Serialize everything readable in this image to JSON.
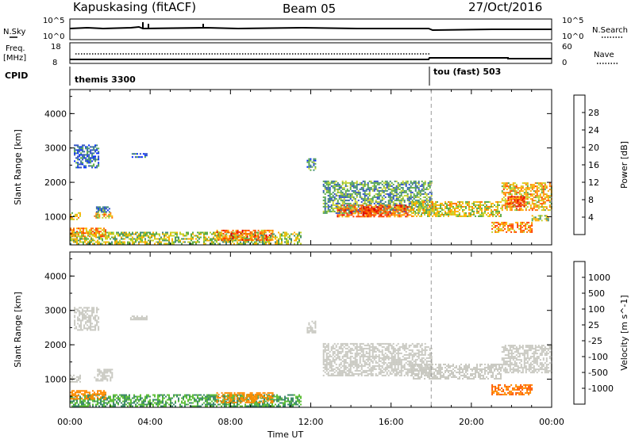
{
  "header": {
    "station": "Kapuskasing (fitACF)",
    "beam": "Beam 05",
    "date": "27/Oct/2016"
  },
  "param_panels": {
    "nsky_label": "N.Sky",
    "nsearch_label": "N.Search",
    "noise_ticks_left": [
      "10^5",
      "10^0"
    ],
    "noise_ticks_right": [
      "10^5",
      "10^0"
    ],
    "freq_label": "Freq.",
    "freq_unit": "[MHz]",
    "freq_ticks": [
      "18",
      "8"
    ],
    "nave_label": "Nave",
    "nave_ticks": [
      "60",
      "0"
    ],
    "cpid_label": "CPID",
    "cpid_segments": [
      {
        "name": "themis 3300",
        "start_hour": 0
      },
      {
        "name": "tou (fast) 503",
        "start_hour": 18
      }
    ]
  },
  "time_axis": {
    "label": "Time UT",
    "ticks": [
      "00:00",
      "04:00",
      "08:00",
      "12:00",
      "16:00",
      "20:00",
      "00:00"
    ]
  },
  "colors": {
    "power": [
      "#0026ff",
      "#2d4fc4",
      "#3f8a78",
      "#5aab45",
      "#c4d32a",
      "#ffb000",
      "#ff7400",
      "#ff3e00",
      "#e00000"
    ],
    "velocity": [
      "#1a3fbf",
      "#2f6fb0",
      "#3d8a6a",
      "#5fbf3a",
      "#c8c8c0",
      "#ffc000",
      "#ff8a00",
      "#ff5a00",
      "#ee0000"
    ],
    "ground_scatter": "#c8c8c0"
  },
  "chart_data": [
    {
      "type": "heatmap",
      "name": "power",
      "xlabel": "Time UT",
      "ylabel": "Slant Range [km]",
      "xlim": [
        0,
        24
      ],
      "ylim": [
        180,
        4700
      ],
      "yticks": [
        "4000",
        "3000",
        "2000",
        "1000"
      ],
      "colorbar": {
        "label": "Power [dB]",
        "ticks": [
          "28",
          "24",
          "20",
          "16",
          "12",
          "8",
          "4"
        ],
        "range": [
          0,
          30
        ]
      },
      "regions": [
        {
          "t0": 0.0,
          "t1": 11.5,
          "r0": 200,
          "r1": 560,
          "value": 14
        },
        {
          "t0": 0.0,
          "t1": 1.8,
          "r0": 430,
          "r1": 680,
          "value": 20
        },
        {
          "t0": 7.3,
          "t1": 10.1,
          "r0": 300,
          "r1": 620,
          "value": 22
        },
        {
          "t0": 0.0,
          "t1": 0.5,
          "r0": 900,
          "r1": 1130,
          "value": 16
        },
        {
          "t0": 1.2,
          "t1": 2.1,
          "r0": 950,
          "r1": 1130,
          "value": 18
        },
        {
          "t0": 1.3,
          "t1": 2.0,
          "r0": 1130,
          "r1": 1300,
          "value": 8
        },
        {
          "t0": 0.2,
          "t1": 1.4,
          "r0": 2450,
          "r1": 3100,
          "value": 6
        },
        {
          "t0": 3.0,
          "t1": 3.8,
          "r0": 2750,
          "r1": 2850,
          "value": 6
        },
        {
          "t0": 11.8,
          "t1": 12.2,
          "r0": 2350,
          "r1": 2700,
          "value": 8
        },
        {
          "t0": 12.6,
          "t1": 18.0,
          "r0": 1100,
          "r1": 2050,
          "value": 10
        },
        {
          "t0": 13.3,
          "t1": 17.0,
          "r0": 1000,
          "r1": 1350,
          "value": 22
        },
        {
          "t0": 14.6,
          "t1": 15.6,
          "r0": 1050,
          "r1": 1300,
          "value": 27
        },
        {
          "t0": 17.0,
          "t1": 21.5,
          "r0": 1000,
          "r1": 1450,
          "value": 16
        },
        {
          "t0": 21.5,
          "t1": 24.0,
          "r0": 1200,
          "r1": 2000,
          "value": 18
        },
        {
          "t0": 21.8,
          "t1": 22.6,
          "r0": 1300,
          "r1": 1600,
          "value": 24
        },
        {
          "t0": 21.0,
          "t1": 23.0,
          "r0": 550,
          "r1": 850,
          "value": 20
        },
        {
          "t0": 23.0,
          "t1": 23.8,
          "r0": 900,
          "r1": 1050,
          "value": 14
        }
      ]
    },
    {
      "type": "heatmap",
      "name": "velocity",
      "xlabel": "Time UT",
      "ylabel": "Slant Range [km]",
      "xlim": [
        0,
        24
      ],
      "ylim": [
        180,
        4700
      ],
      "yticks": [
        "4000",
        "3000",
        "2000",
        "1000"
      ],
      "colorbar": {
        "label": "Velocity [m s^-1]",
        "ticks": [
          "1000",
          "500",
          "100",
          "25",
          "-25",
          "-100",
          "-500",
          "-1000"
        ]
      },
      "regions": [
        {
          "t0": 0.0,
          "t1": 11.5,
          "r0": 200,
          "r1": 560,
          "value": 60
        },
        {
          "t0": 0.0,
          "t1": 1.8,
          "r0": 430,
          "r1": 680,
          "value": -150
        },
        {
          "t0": 7.3,
          "t1": 10.1,
          "r0": 300,
          "r1": 620,
          "value": -120
        },
        {
          "t0": 0.0,
          "t1": 0.5,
          "r0": 900,
          "r1": 1130,
          "value": 0
        },
        {
          "t0": 1.2,
          "t1": 2.1,
          "r0": 950,
          "r1": 1300,
          "value": 0
        },
        {
          "t0": 0.2,
          "t1": 1.4,
          "r0": 2450,
          "r1": 3100,
          "value": 0
        },
        {
          "t0": 3.0,
          "t1": 3.8,
          "r0": 2750,
          "r1": 2850,
          "value": 0
        },
        {
          "t0": 11.8,
          "t1": 12.2,
          "r0": 2350,
          "r1": 2700,
          "value": 0
        },
        {
          "t0": 12.6,
          "t1": 18.0,
          "r0": 1100,
          "r1": 2050,
          "value": 0
        },
        {
          "t0": 17.0,
          "t1": 21.5,
          "r0": 1000,
          "r1": 1450,
          "value": 0
        },
        {
          "t0": 21.5,
          "t1": 24.0,
          "r0": 1200,
          "r1": 2000,
          "value": 0
        },
        {
          "t0": 21.0,
          "t1": 23.0,
          "r0": 550,
          "r1": 850,
          "value": -300
        }
      ]
    }
  ]
}
